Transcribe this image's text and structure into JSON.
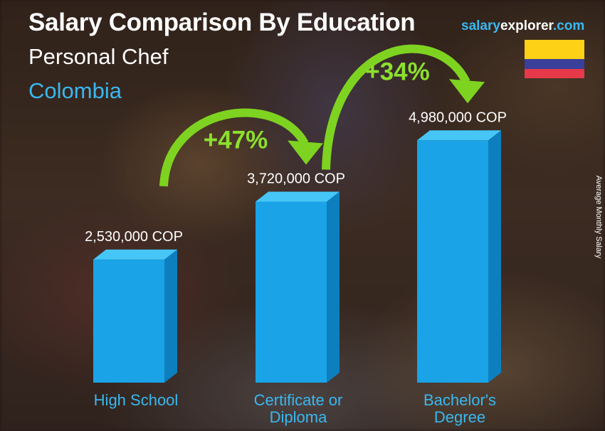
{
  "header": {
    "title": "Salary Comparison By Education",
    "job": "Personal Chef",
    "country": "Colombia",
    "brand_part1": "salary",
    "brand_part2": "explorer",
    "brand_part3": ".com"
  },
  "flag": {
    "name": "colombia-flag",
    "colors": {
      "yellow": "#fcd116",
      "blue": "#3a3f9b",
      "red": "#e8394a"
    }
  },
  "colors": {
    "bar_front": "#1aa3e6",
    "bar_side": "#0d7fbf",
    "bar_top": "#45c6f7",
    "accent": "#39b8f0",
    "arrow": "#7ed321"
  },
  "chart_data": {
    "type": "bar",
    "categories": [
      "High School",
      "Certificate or\nDiploma",
      "Bachelor's\nDegree"
    ],
    "values": [
      2530000,
      3720000,
      4980000
    ],
    "value_labels": [
      "2,530,000 COP",
      "3,720,000 COP",
      "4,980,000 COP"
    ],
    "ylabel": "Average Monthly Salary",
    "unit": "COP",
    "ylim": [
      0,
      5700000
    ],
    "increases": [
      {
        "from": 0,
        "to": 1,
        "label": "+47%"
      },
      {
        "from": 1,
        "to": 2,
        "label": "+34%"
      }
    ]
  }
}
